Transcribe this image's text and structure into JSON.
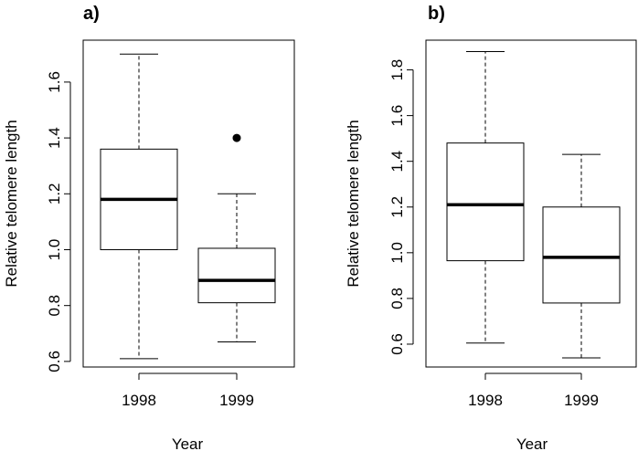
{
  "chart_data": [
    {
      "type": "box",
      "panel_label": "a)",
      "xlabel": "Year",
      "ylabel": "Relative telomere length",
      "categories": [
        "1998",
        "1999"
      ],
      "boxes": [
        {
          "category": "1998",
          "whisker_low": 0.61,
          "q1": 1.0,
          "median": 1.18,
          "q3": 1.36,
          "whisker_high": 1.7,
          "outliers": []
        },
        {
          "category": "1999",
          "whisker_low": 0.67,
          "q1": 0.81,
          "median": 0.89,
          "q3": 1.005,
          "whisker_high": 1.2,
          "outliers": [
            1.4
          ]
        }
      ],
      "ylim": [
        0.58,
        1.75
      ],
      "yticks": [
        0.6,
        0.8,
        1.0,
        1.2,
        1.4,
        1.6
      ],
      "ytick_labels": [
        "0.6",
        "0.8",
        "1.0",
        "1.2",
        "1.4",
        "1.6"
      ],
      "grid": false
    },
    {
      "type": "box",
      "panel_label": "b)",
      "xlabel": "Year",
      "ylabel": "Relative telomere length",
      "categories": [
        "1998",
        "1999"
      ],
      "boxes": [
        {
          "category": "1998",
          "whisker_low": 0.605,
          "q1": 0.965,
          "median": 1.21,
          "q3": 1.48,
          "whisker_high": 1.88,
          "outliers": []
        },
        {
          "category": "1999",
          "whisker_low": 0.54,
          "q1": 0.78,
          "median": 0.98,
          "q3": 1.2,
          "whisker_high": 1.43,
          "outliers": []
        }
      ],
      "ylim": [
        0.5,
        1.93
      ],
      "yticks": [
        0.6,
        0.8,
        1.0,
        1.2,
        1.4,
        1.6,
        1.8
      ],
      "ytick_labels": [
        "0.6",
        "0.8",
        "1.0",
        "1.2",
        "1.4",
        "1.6",
        "1.8"
      ],
      "grid": false
    }
  ]
}
